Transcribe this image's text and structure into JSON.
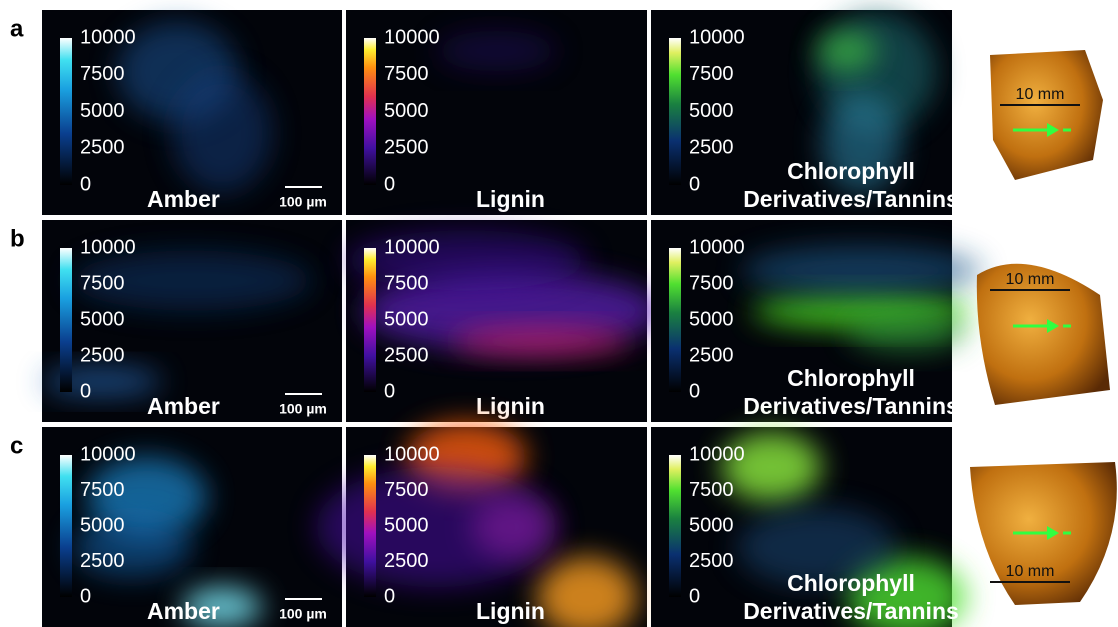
{
  "figure": {
    "rows": [
      {
        "label": "a",
        "panels": [
          {
            "colorbar_ticks": [
              0,
              2500,
              5000,
              7500,
              10000
            ],
            "name_lines": [
              "Amber"
            ],
            "scale_bar": "100 µm"
          },
          {
            "colorbar_ticks": [
              0,
              2500,
              5000,
              7500,
              10000
            ],
            "name_lines": [
              "Lignin"
            ]
          },
          {
            "colorbar_ticks": [
              0,
              2500,
              5000,
              7500,
              10000
            ],
            "name_lines": [
              "Chlorophyll",
              "Derivatives/Tannins"
            ]
          }
        ],
        "photo_scale": "10 mm"
      },
      {
        "label": "b",
        "panels": [
          {
            "colorbar_ticks": [
              0,
              2500,
              5000,
              7500,
              10000
            ],
            "name_lines": [
              "Amber"
            ],
            "scale_bar": "100 µm"
          },
          {
            "colorbar_ticks": [
              0,
              2500,
              5000,
              7500,
              10000
            ],
            "name_lines": [
              "Lignin"
            ]
          },
          {
            "colorbar_ticks": [
              0,
              2500,
              5000,
              7500,
              10000
            ],
            "name_lines": [
              "Chlorophyll",
              "Derivatives/Tannins"
            ]
          }
        ],
        "photo_scale": "10 mm"
      },
      {
        "label": "c",
        "panels": [
          {
            "colorbar_ticks": [
              0,
              2500,
              5000,
              7500,
              10000
            ],
            "name_lines": [
              "Amber"
            ],
            "scale_bar": "100 µm"
          },
          {
            "colorbar_ticks": [
              0,
              2500,
              5000,
              7500,
              10000
            ],
            "name_lines": [
              "Lignin"
            ]
          },
          {
            "colorbar_ticks": [
              0,
              2500,
              5000,
              7500,
              10000
            ],
            "name_lines": [
              "Chlorophyll",
              "Derivatives/Tannins"
            ]
          }
        ],
        "photo_scale": "10 mm"
      }
    ]
  }
}
